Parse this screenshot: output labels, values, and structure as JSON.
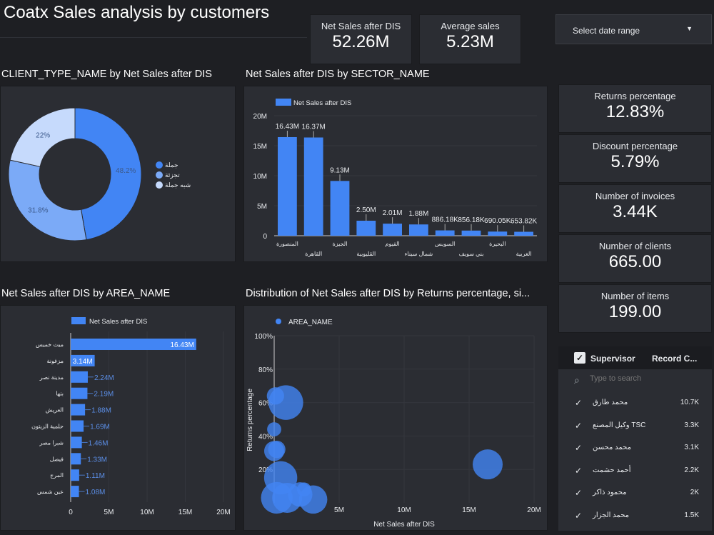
{
  "header": {
    "title": "Coatx Sales analysis by customers",
    "date_range_label": "Select date range"
  },
  "kpis_top": [
    {
      "label": "Net Sales after DIS",
      "value": "52.26M"
    },
    {
      "label": "Average sales",
      "value": "5.23M"
    }
  ],
  "kpis_side": [
    {
      "label": "Returns percentage",
      "value": "12.83%"
    },
    {
      "label": "Discount percentage",
      "value": "5.79%"
    },
    {
      "label": "Number of invoices",
      "value": "3.44K"
    },
    {
      "label": "Number of clients",
      "value": "665.00"
    },
    {
      "label": "Number of items",
      "value": "199.00"
    }
  ],
  "colors": {
    "primary": "#4285f4",
    "secondary": "#7baaf7",
    "tertiary": "#c6dafc",
    "background": "#1e1f23",
    "panel": "#2b2d33"
  },
  "chart_data": [
    {
      "type": "pie",
      "title": "CLIENT_TYPE_NAME by Net Sales after DIS",
      "donut": true,
      "legend": "right",
      "slices": [
        {
          "name": "جملة",
          "value": 48.2,
          "label": "48.2%"
        },
        {
          "name": "تجزئة",
          "value": 31.8,
          "label": "31.8%"
        },
        {
          "name": "شبه جملة",
          "value": 22,
          "label": "22%"
        }
      ]
    },
    {
      "type": "bar",
      "title": "Net Sales after DIS by SECTOR_NAME",
      "legend": "top-left",
      "series_name": "Net Sales after DIS",
      "ylim": [
        0,
        20000000
      ],
      "yticks": [
        "0",
        "5M",
        "10M",
        "15M",
        "20M"
      ],
      "categories": [
        "المنصورة",
        "القاهرة",
        "الجيزة",
        "القليوبية",
        "الفيوم",
        "شمال سيناء",
        "السويس",
        "بني سويف",
        "البحيرة",
        "الغربية"
      ],
      "values": [
        16430000,
        16370000,
        9130000,
        2500000,
        2010000,
        1880000,
        886180,
        856180,
        690050,
        653820
      ],
      "labels": [
        "16.43M",
        "16.37M",
        "9.13M",
        "2.50M",
        "2.01M",
        "1.88M",
        "886.18K",
        "856.18K",
        "690.05K",
        "653.82K"
      ]
    },
    {
      "type": "bar",
      "orientation": "horizontal",
      "title": "Net Sales after DIS by AREA_NAME",
      "legend": "top",
      "series_name": "Net Sales after DIS",
      "xlim": [
        0,
        20000000
      ],
      "xticks": [
        "0",
        "5M",
        "10M",
        "15M",
        "20M"
      ],
      "categories": [
        "ميت خميس",
        "مزغونة",
        "مدينة نصر",
        "بنها",
        "العريش",
        "حلمية الزيتون",
        "شبرا مصر",
        "فيصل",
        "المرج",
        "عين شمس"
      ],
      "values": [
        16430000,
        3140000,
        2240000,
        2190000,
        1880000,
        1690000,
        1460000,
        1330000,
        1110000,
        1080000
      ],
      "labels": [
        "16.43M",
        "3.14M",
        "2.24M",
        "2.19M",
        "1.88M",
        "1.69M",
        "1.46M",
        "1.33M",
        "1.11M",
        "1.08M"
      ]
    },
    {
      "type": "scatter",
      "title": "Distribution of Net Sales after DIS by Returns percentage, si...",
      "legend": "top-left",
      "series_name": "AREA_NAME",
      "xlabel": "Net Sales after DIS",
      "ylabel": "Returns percentage",
      "xlim": [
        0,
        20000000
      ],
      "ylim": [
        0,
        100
      ],
      "xticks": [
        "5M",
        "10M",
        "15M",
        "20M"
      ],
      "yticks": [
        "20%",
        "40%",
        "60%",
        "80%",
        "100%"
      ],
      "points": [
        {
          "x": 100000,
          "y": 64,
          "size": 3
        },
        {
          "x": 900000,
          "y": 60,
          "size": 12
        },
        {
          "x": 0,
          "y": 44,
          "size": 2
        },
        {
          "x": 200000,
          "y": 32,
          "size": 3
        },
        {
          "x": 0,
          "y": 31,
          "size": 4
        },
        {
          "x": 500000,
          "y": 15,
          "size": 11
        },
        {
          "x": 200000,
          "y": 3,
          "size": 10
        },
        {
          "x": 1000000,
          "y": 3,
          "size": 9
        },
        {
          "x": 2000000,
          "y": 5,
          "size": 6
        },
        {
          "x": 3000000,
          "y": 2,
          "size": 8
        },
        {
          "x": 2300000,
          "y": 8,
          "size": 2
        },
        {
          "x": 16430000,
          "y": 23,
          "size": 9
        }
      ]
    }
  ],
  "supervisor_table": {
    "header": "Supervisor",
    "count_header": "Record C...",
    "search_placeholder": "Type to search",
    "rows": [
      {
        "name": "محمد طارق",
        "count": "10.7K"
      },
      {
        "name": "TSC وكيل المصنع",
        "count": "3.3K"
      },
      {
        "name": "محمد محسن",
        "count": "3.1K"
      },
      {
        "name": "أحمد حشمت",
        "count": "2.2K"
      },
      {
        "name": "محمود ذاكر",
        "count": "2K"
      },
      {
        "name": "محمد الجزار",
        "count": "1.5K"
      }
    ]
  }
}
